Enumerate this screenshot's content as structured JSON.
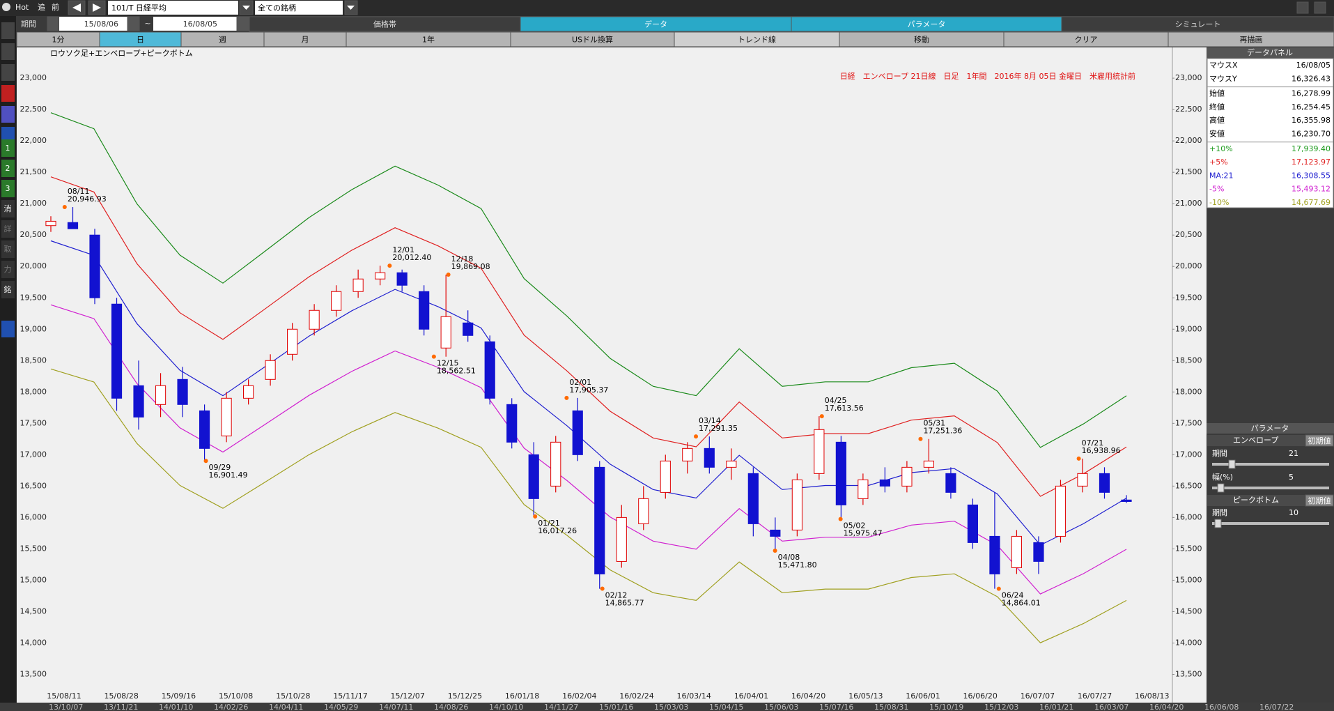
{
  "toolbar": {
    "hot": "Hot",
    "add": "追",
    "prev": "前",
    "symbol": "101/T 日経平均",
    "universe": "全ての銘柄",
    "period_label": "期間",
    "from": "15/08/06",
    "tilde": "~",
    "to": "16/08/05"
  },
  "tabs": [
    "価格帯",
    "データ",
    "パラメータ",
    "シミュレート"
  ],
  "buttons": [
    "1分",
    "日",
    "週",
    "月",
    "1年",
    "USドル換算",
    "トレンド線",
    "移動",
    "クリア",
    "再描画"
  ],
  "sidebar": [
    "1",
    "2",
    "3",
    "消",
    "詳",
    "取",
    "力",
    "銘"
  ],
  "chart_data": {
    "type": "candlestick",
    "label": "ロウソク足+エンベロープ+ピークボトム",
    "title": "日経　エンベロープ 21日線　日足　1年間　2016年 8月 05日 金曜日　米雇用統計前",
    "ylim": [
      13050,
      23490
    ],
    "yticks": [
      {
        "value": 13500,
        "label": "13,500"
      },
      {
        "value": 14000,
        "label": "14,000"
      },
      {
        "value": 14500,
        "label": "14,500"
      },
      {
        "value": 15000,
        "label": "15,000"
      },
      {
        "value": 15500,
        "label": "15,500"
      },
      {
        "value": 16000,
        "label": "16,000"
      },
      {
        "value": 16500,
        "label": "16,500"
      },
      {
        "value": 17000,
        "label": "17,000"
      },
      {
        "value": 17500,
        "label": "17,500"
      },
      {
        "value": 18000,
        "label": "18,000"
      },
      {
        "value": 18500,
        "label": "18,500"
      },
      {
        "value": 19000,
        "label": "19,000"
      },
      {
        "value": 19500,
        "label": "19,500"
      },
      {
        "value": 20000,
        "label": "20,000"
      },
      {
        "value": 20500,
        "label": "20,500"
      },
      {
        "value": 21000,
        "label": "21,000"
      },
      {
        "value": 21500,
        "label": "21,500"
      },
      {
        "value": 22000,
        "label": "22,000"
      },
      {
        "value": 22500,
        "label": "22,500"
      },
      {
        "value": 23000,
        "label": "23,000"
      }
    ],
    "x_labels": [
      "15/08/11",
      "15/08/28",
      "15/09/16",
      "15/10/08",
      "15/10/28",
      "15/11/17",
      "15/12/07",
      "15/12/25",
      "16/01/18",
      "16/02/04",
      "16/02/24",
      "16/03/14",
      "16/04/01",
      "16/04/20",
      "16/05/13",
      "16/06/01",
      "16/06/20",
      "16/07/07",
      "16/07/27",
      "16/08/13"
    ],
    "up_color": "#e00000",
    "down_color": "#1212d0",
    "candles": {
      "open": [
        20650,
        20700,
        20500,
        19400,
        18100,
        17800,
        18200,
        17700,
        17300,
        17900,
        18200,
        18600,
        19000,
        19300,
        19600,
        19800,
        19900,
        19600,
        18700,
        19100,
        18800,
        17800,
        17000,
        16500,
        17700,
        16800,
        15300,
        15900,
        16400,
        16900,
        17100,
        16800,
        16700,
        15800,
        15800,
        16700,
        17200,
        16300,
        16600,
        16500,
        16800,
        16700,
        16200,
        15700,
        15200,
        15600,
        15700,
        16500,
        16700,
        16278.99
      ],
      "high": [
        20800,
        20946,
        20600,
        19500,
        18500,
        18300,
        18400,
        17800,
        18000,
        18200,
        18600,
        19100,
        19400,
        19700,
        19950,
        20012,
        19950,
        19700,
        19869,
        19300,
        18900,
        17900,
        17200,
        17300,
        17905,
        16900,
        16200,
        16500,
        17000,
        17200,
        17291,
        17100,
        16800,
        16000,
        16700,
        17613,
        17300,
        16700,
        16800,
        16900,
        17251,
        16800,
        16300,
        16400,
        15800,
        15700,
        16600,
        16938,
        16800,
        16355.98
      ],
      "low": [
        20550,
        20600,
        19400,
        17700,
        17400,
        17600,
        17600,
        16901,
        17200,
        17800,
        18100,
        18500,
        18900,
        19200,
        19500,
        19700,
        19600,
        18900,
        18562,
        18800,
        17800,
        17100,
        16017,
        16400,
        16900,
        14865,
        15200,
        15800,
        16300,
        16700,
        16700,
        16600,
        15700,
        15471,
        15700,
        16600,
        15975,
        16200,
        16400,
        16400,
        16700,
        16300,
        15500,
        14864,
        15100,
        15100,
        15600,
        16400,
        16300,
        16230.7
      ],
      "close": [
        20720,
        20600,
        19500,
        17900,
        17600,
        18100,
        17800,
        17100,
        17900,
        18100,
        18500,
        19000,
        19300,
        19600,
        19800,
        19900,
        19700,
        19000,
        19200,
        18900,
        17900,
        17200,
        16300,
        17200,
        17000,
        15100,
        16000,
        16300,
        16900,
        17100,
        16800,
        16900,
        15900,
        15700,
        16600,
        17400,
        16200,
        16600,
        16500,
        16800,
        16900,
        16400,
        15600,
        15100,
        15700,
        15300,
        16500,
        16700,
        16400,
        16254.45
      ]
    },
    "series": [
      {
        "color": "#1a8a1a",
        "values": [
          22449,
          22195,
          20999,
          20180,
          19734,
          20254,
          20779,
          21225,
          21599,
          21296,
          20922,
          19806,
          19206,
          18535,
          18090,
          17941,
          18689,
          18090,
          18161,
          18161,
          18387,
          18458,
          18013,
          17116,
          17490,
          17939.4
        ]
      },
      {
        "color": "#e02020",
        "values": [
          21428,
          21186,
          20045,
          19262,
          18837,
          19334,
          19835,
          20260,
          20617,
          20328,
          19971,
          18905,
          18333,
          17693,
          17267,
          17126,
          17840,
          17267,
          17336,
          17336,
          17551,
          17619,
          17194,
          16338,
          16695,
          17123.97
        ]
      },
      {
        "color": "#2020d0",
        "values": [
          20408,
          20177,
          19090,
          18345,
          17940,
          18413,
          18890,
          19295,
          19635,
          19360,
          19020,
          18005,
          17460,
          16850,
          16445,
          16310,
          16990,
          16445,
          16510,
          16510,
          16715,
          16780,
          16375,
          15560,
          15900,
          16308.55
        ]
      },
      {
        "color": "#d020d0",
        "values": [
          19388,
          19168,
          18136,
          17428,
          17043,
          17492,
          17946,
          18330,
          18653,
          18392,
          18069,
          17105,
          16587,
          16008,
          15623,
          15495,
          16141,
          15623,
          15685,
          15685,
          15879,
          15941,
          15556,
          14782,
          15105,
          15493.12
        ]
      },
      {
        "color": "#a0a020",
        "values": [
          18367,
          18159,
          17181,
          16511,
          16146,
          16572,
          17001,
          17366,
          17672,
          17424,
          17118,
          16205,
          15714,
          15165,
          14801,
          14679,
          15291,
          14801,
          14859,
          14859,
          15044,
          15102,
          14738,
          14004,
          14310,
          14677.69
        ]
      }
    ],
    "annotations": [
      {
        "date": "08/11",
        "value": 20946.93,
        "label": "20,946.93"
      },
      {
        "date": "09/29",
        "value": 16901.49,
        "label": "16,901.49"
      },
      {
        "date": "12/01",
        "value": 20012.4,
        "label": "20,012.40"
      },
      {
        "date": "12/15",
        "value": 18562.51,
        "label": "18,562.51"
      },
      {
        "date": "12/18",
        "value": 19869.08,
        "label": "19,869.08"
      },
      {
        "date": "01/21",
        "value": 16017.26,
        "label": "16,017.26"
      },
      {
        "date": "02/01",
        "value": 17905.37,
        "label": "17,905.37"
      },
      {
        "date": "02/12",
        "value": 14865.77,
        "label": "14,865.77"
      },
      {
        "date": "03/14",
        "value": 17291.35,
        "label": "17,291.35"
      },
      {
        "date": "04/08",
        "value": 15471.8,
        "label": "15,471.80"
      },
      {
        "date": "04/25",
        "value": 17613.56,
        "label": "17,613.56"
      },
      {
        "date": "05/02",
        "value": 15975.47,
        "label": "15,975.47"
      },
      {
        "date": "05/31",
        "value": 17251.36,
        "label": "17,251.36"
      },
      {
        "date": "06/24",
        "value": 14864.01,
        "label": "14,864.01"
      },
      {
        "date": "07/21",
        "value": 16938.96,
        "label": "16,938.96"
      }
    ]
  },
  "data_panel": {
    "title": "データパネル",
    "rows": [
      [
        "マウスX",
        "16/08/05"
      ],
      [
        "マウスY",
        "16,326.43"
      ],
      [
        "始値",
        "16,278.99"
      ],
      [
        "終値",
        "16,254.45"
      ],
      [
        "高値",
        "16,355.98"
      ],
      [
        "安値",
        "16,230.70"
      ],
      [
        "+10%",
        "17,939.40"
      ],
      [
        "+5%",
        "17,123.97"
      ],
      [
        "MA:21",
        "16,308.55"
      ],
      [
        "-5%",
        "15,493.12"
      ],
      [
        "-10%",
        "14,677.69"
      ]
    ]
  },
  "parameter_panel": {
    "title": "パラメータ",
    "envelope": "エンベロープ",
    "reset": "初期値",
    "period_label": "期間",
    "period": "21",
    "width_label": "幅(%)",
    "width": "5",
    "peak_bottom": "ピークボトム",
    "reset2": "初期値",
    "period2_label": "期間",
    "period2": "10"
  },
  "scroll_dates": [
    "13/10/07",
    "13/11/21",
    "14/01/10",
    "14/02/26",
    "14/04/11",
    "14/05/29",
    "14/07/11",
    "14/08/26",
    "14/10/10",
    "14/11/27",
    "15/01/16",
    "15/03/03",
    "15/04/15",
    "15/06/03",
    "15/07/16",
    "15/08/31",
    "15/10/19",
    "15/12/03",
    "16/01/21",
    "16/03/07",
    "16/04/20",
    "16/06/08",
    "16/07/22"
  ]
}
